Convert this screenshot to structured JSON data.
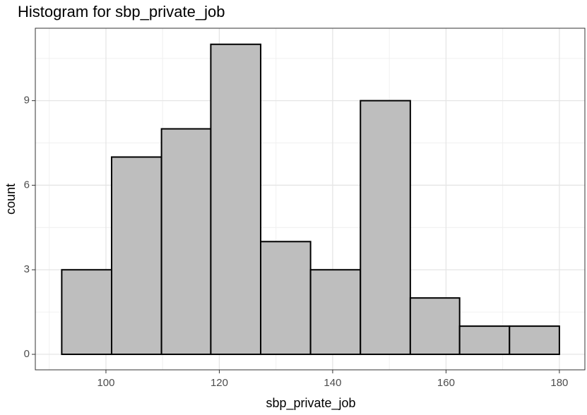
{
  "chart_data": {
    "type": "histogram",
    "title": "Histogram for sbp_private_job",
    "x_label": "sbp_private_job",
    "y_label": "count",
    "bins": [
      92.2,
      101.0,
      109.8,
      118.5,
      127.3,
      136.1,
      144.9,
      153.7,
      162.4,
      171.2,
      180.0
    ],
    "values": [
      3,
      7,
      8,
      11,
      4,
      3,
      9,
      2,
      1,
      1
    ],
    "color": "#bebebe",
    "edge_color": "#000000",
    "xlim": [
      87.54,
      184.5
    ],
    "xticks": [
      100,
      120,
      140,
      160,
      180
    ],
    "x_minor_ticks": [
      90,
      110,
      130,
      150,
      170
    ],
    "ylim": [
      -0.55,
      11.57
    ],
    "yticks": [
      0,
      3,
      6,
      9
    ],
    "y_minor_ticks": [
      1.5,
      4.5,
      7.5,
      10.5
    ],
    "grid": true
  }
}
